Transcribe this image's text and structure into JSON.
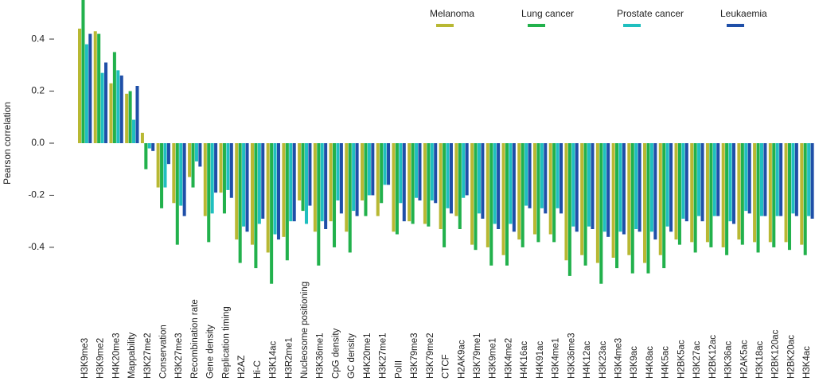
{
  "chart_data": {
    "type": "bar",
    "y_label": "Pearson correlation",
    "categories": [
      "H3K9me3",
      "H3K9me2",
      "H4K20me3",
      "Mappability",
      "H3K27me2",
      "Conservation",
      "H3K27me3",
      "Recombination rate",
      "Gene density",
      "Replication timing",
      "H2AZ",
      "Hi-C",
      "H3K14ac",
      "H3R2me1",
      "Nucleosome positioning",
      "H3K36me1",
      "CpG density",
      "GC density",
      "H4K20me1",
      "H3K27me1",
      "PolII",
      "H3K79me3",
      "H3K79me2",
      "CTCF",
      "H2AK9ac",
      "H3K79me1",
      "H3K9me1",
      "H3K4me2",
      "H4K16ac",
      "H4K91ac",
      "H3K4me1",
      "H3K36me3",
      "H4K12ac",
      "H3K23ac",
      "H3K4me3",
      "H3K9ac",
      "H4K8ac",
      "H4K5ac",
      "H2BK5ac",
      "H3K27ac",
      "H2BK12ac",
      "H3K36ac",
      "H2AK5ac",
      "H3K18ac",
      "H2BK120ac",
      "H2BK20ac",
      "H3K4ac"
    ],
    "series": [
      {
        "name": "Melanoma",
        "color": "#b8b833",
        "values": [
          0.44,
          0.43,
          0.23,
          0.19,
          0.04,
          -0.17,
          -0.23,
          -0.13,
          -0.28,
          -0.19,
          -0.37,
          -0.39,
          -0.42,
          -0.36,
          -0.22,
          -0.34,
          -0.3,
          -0.34,
          -0.22,
          -0.28,
          -0.34,
          -0.3,
          -0.31,
          -0.33,
          -0.28,
          -0.39,
          -0.4,
          -0.43,
          -0.37,
          -0.35,
          -0.35,
          -0.45,
          -0.43,
          -0.46,
          -0.44,
          -0.43,
          -0.46,
          -0.43,
          -0.37,
          -0.38,
          -0.38,
          -0.4,
          -0.37,
          -0.38,
          -0.38,
          -0.38,
          -0.39
        ]
      },
      {
        "name": "Lung cancer",
        "color": "#22b14c",
        "values": [
          0.55,
          0.42,
          0.35,
          0.2,
          -0.1,
          -0.25,
          -0.39,
          -0.17,
          -0.38,
          -0.27,
          -0.46,
          -0.48,
          -0.54,
          -0.45,
          -0.26,
          -0.47,
          -0.4,
          -0.42,
          -0.28,
          -0.23,
          -0.35,
          -0.31,
          -0.32,
          -0.4,
          -0.33,
          -0.41,
          -0.47,
          -0.47,
          -0.4,
          -0.38,
          -0.38,
          -0.51,
          -0.47,
          -0.54,
          -0.48,
          -0.5,
          -0.5,
          -0.48,
          -0.39,
          -0.42,
          -0.4,
          -0.43,
          -0.39,
          -0.42,
          -0.4,
          -0.41,
          -0.43
        ]
      },
      {
        "name": "Prostate cancer",
        "color": "#1fbfbf",
        "values": [
          0.38,
          0.27,
          0.28,
          0.09,
          -0.02,
          -0.17,
          -0.24,
          -0.07,
          -0.27,
          -0.18,
          -0.32,
          -0.31,
          -0.35,
          -0.3,
          -0.31,
          -0.3,
          -0.22,
          -0.26,
          -0.2,
          -0.16,
          -0.23,
          -0.21,
          -0.22,
          -0.25,
          -0.21,
          -0.27,
          -0.31,
          -0.31,
          -0.24,
          -0.25,
          -0.25,
          -0.32,
          -0.32,
          -0.34,
          -0.34,
          -0.33,
          -0.34,
          -0.32,
          -0.29,
          -0.28,
          -0.28,
          -0.3,
          -0.26,
          -0.28,
          -0.28,
          -0.27,
          -0.28
        ]
      },
      {
        "name": "Leukaemia",
        "color": "#1f4fa8",
        "values": [
          0.42,
          0.31,
          0.26,
          0.22,
          -0.03,
          -0.08,
          -0.28,
          -0.09,
          -0.19,
          -0.21,
          -0.34,
          -0.29,
          -0.37,
          -0.3,
          -0.24,
          -0.33,
          -0.27,
          -0.28,
          -0.2,
          -0.16,
          -0.3,
          -0.22,
          -0.23,
          -0.27,
          -0.2,
          -0.29,
          -0.33,
          -0.34,
          -0.25,
          -0.27,
          -0.27,
          -0.34,
          -0.33,
          -0.36,
          -0.35,
          -0.34,
          -0.37,
          -0.34,
          -0.3,
          -0.3,
          -0.28,
          -0.31,
          -0.27,
          -0.28,
          -0.28,
          -0.28,
          -0.29
        ]
      }
    ],
    "ylim": [
      -0.55,
      0.55
    ],
    "yticks": [
      -0.4,
      -0.2,
      {
        "value": 0,
        "label": "0.0"
      },
      0.2,
      0.4
    ],
    "legend": "upper right"
  }
}
